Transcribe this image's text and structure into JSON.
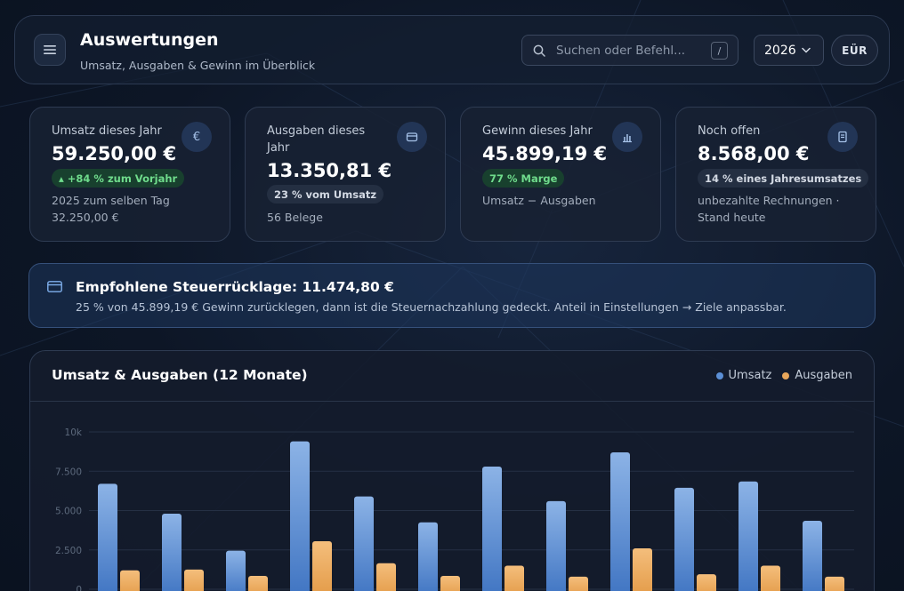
{
  "header": {
    "title": "Auswertungen",
    "subtitle": "Umsatz, Ausgaben & Gewinn im Überblick",
    "search_placeholder": "Suchen oder Befehl...",
    "search_shortcut": "/",
    "year": "2026",
    "mode_button": "EÜR",
    "icons": {
      "menu": "menu-icon",
      "search": "search-icon",
      "dropdown": "chevron-down-icon"
    }
  },
  "kpis": [
    {
      "label": "Umsatz dieses Jahr",
      "value": "59.250,00 €",
      "badge": "▴ +84 % zum Vorjahr",
      "badge_style": "green",
      "note": "2025 zum selben Tag 32.250,00 €",
      "icon": "euro-icon",
      "icon_glyph": "€"
    },
    {
      "label": "Ausgaben dieses Jahr",
      "value": "13.350,81 €",
      "badge": "23 % vom Umsatz",
      "badge_style": "neutral",
      "note": "56 Belege",
      "icon": "wallet-icon"
    },
    {
      "label": "Gewinn dieses Jahr",
      "value": "45.899,19 €",
      "badge": "77 % Marge",
      "badge_style": "green",
      "note": "Umsatz − Ausgaben",
      "icon": "bar-chart-icon"
    },
    {
      "label": "Noch offen",
      "value": "8.568,00 €",
      "badge": "14 % eines Jahresumsatzes",
      "badge_style": "neutral",
      "note": "unbezahlte Rechnungen · Stand heute",
      "icon": "receipt-icon"
    }
  ],
  "tax_banner": {
    "title": "Empfohlene Steuerrücklage: 11.474,80 €",
    "text": "25 % von 45.899,19 € Gewinn zurücklegen, dann ist die Steuernachzahlung gedeckt. Anteil in Einstellungen → Ziele anpassbar.",
    "icon": "card-icon"
  },
  "chart_data": {
    "type": "bar",
    "title": "Umsatz & Ausgaben (12 Monate)",
    "y_tick_labels": [
      "0",
      "2.500",
      "5.000",
      "7.500",
      "10k"
    ],
    "ylim": [
      0,
      10000
    ],
    "grid": true,
    "legend_position": "top-right",
    "series": [
      {
        "name": "Umsatz",
        "color": "#5b8fd6",
        "values": [
          6700,
          4800,
          2450,
          9400,
          5900,
          4250,
          7800,
          5600,
          8700,
          6450,
          6850,
          4350
        ]
      },
      {
        "name": "Ausgaben",
        "color": "#e8a75b",
        "values": [
          1200,
          1250,
          850,
          3050,
          1650,
          850,
          1500,
          800,
          2600,
          950,
          1500,
          800
        ]
      }
    ]
  }
}
